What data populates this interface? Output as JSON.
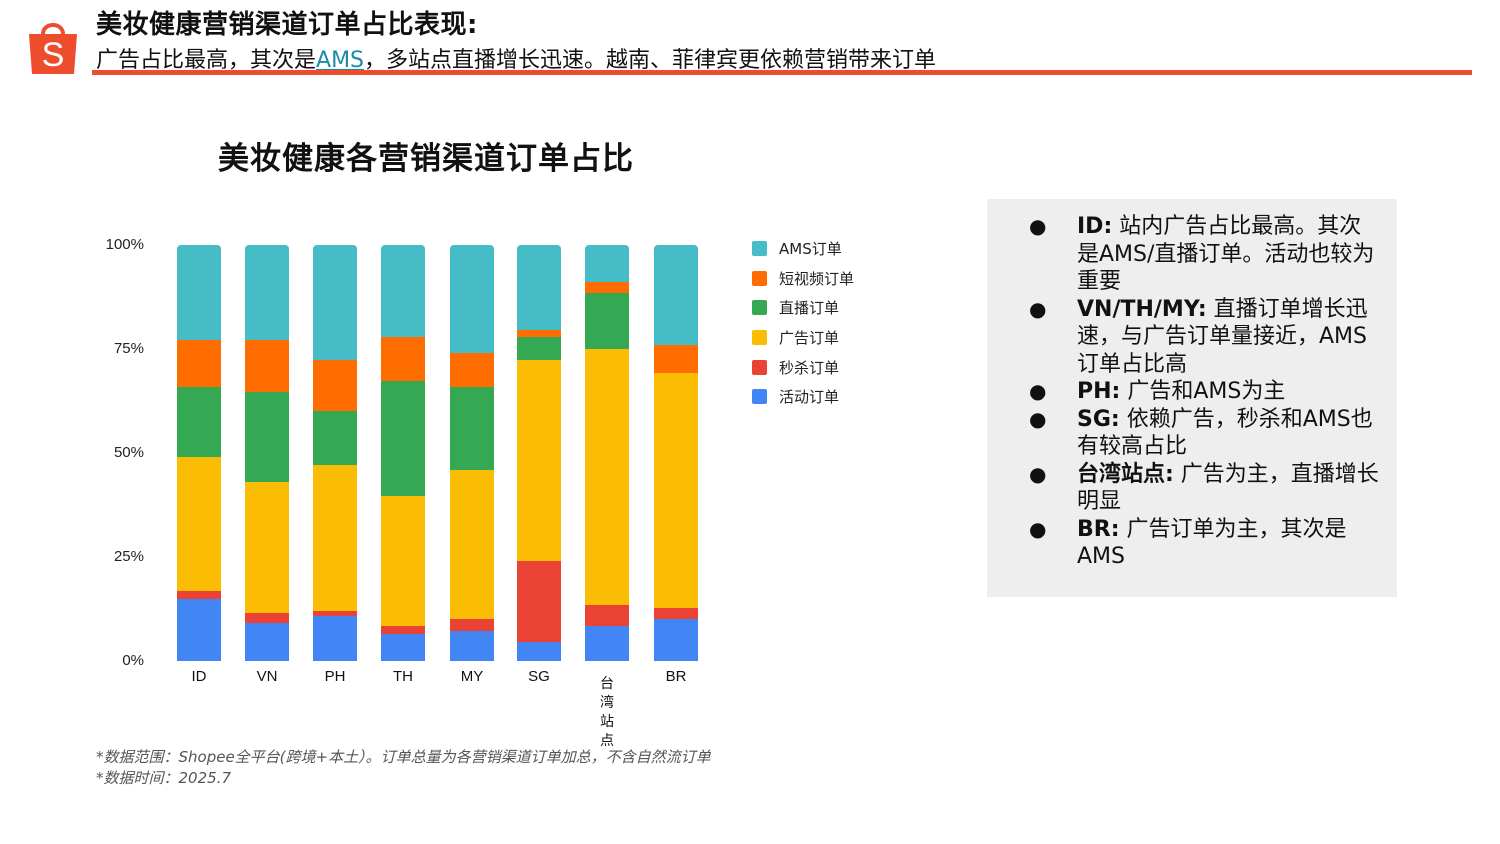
{
  "header": {
    "title": "美妆健康营销渠道订单占比表现:",
    "subtitle_pre": "广告占比最高，其次是",
    "subtitle_link": "AMS",
    "subtitle_post": "，多站点直播增长迅速。越南、菲律宾更依赖营销带来订单",
    "logo_icon": "shopee-bag-icon",
    "accent_color": "#EE4D2D"
  },
  "chart_data": {
    "type": "bar",
    "stacked": true,
    "normalized": true,
    "title": "美妆健康各营销渠道订单占比",
    "xlabel": "",
    "ylabel": "",
    "ylim": [
      0,
      100
    ],
    "yticks": [
      "0%",
      "25%",
      "50%",
      "75%",
      "100%"
    ],
    "grid": false,
    "legend_position": "right",
    "categories": [
      "ID",
      "VN",
      "PH",
      "TH",
      "MY",
      "SG",
      "台湾站点",
      "BR"
    ],
    "series": [
      {
        "name": "活动订单",
        "color": "#4285F4",
        "values": [
          14.9,
          9.1,
          10.8,
          6.5,
          7.2,
          4.6,
          8.4,
          10.1
        ]
      },
      {
        "name": "秒杀订单",
        "color": "#EA4335",
        "values": [
          1.9,
          2.4,
          1.2,
          1.9,
          2.9,
          19.4,
          5.1,
          2.6
        ]
      },
      {
        "name": "广告订单",
        "color": "#FBBC04",
        "values": [
          32.2,
          31.5,
          35.1,
          31.3,
          35.8,
          48.4,
          61.5,
          56.5
        ]
      },
      {
        "name": "直播订单",
        "color": "#34A853",
        "values": [
          16.9,
          21.6,
          13.0,
          27.6,
          20.0,
          5.5,
          13.5,
          0
        ]
      },
      {
        "name": "短视频订单",
        "color": "#FF6D01",
        "values": [
          11.3,
          12.5,
          12.3,
          10.6,
          8.1,
          1.7,
          2.6,
          6.8
        ]
      },
      {
        "name": "AMS订单",
        "color": "#46BDC6",
        "values": [
          22.8,
          22.8,
          27.6,
          22.1,
          26.0,
          20.4,
          8.9,
          24.0
        ]
      }
    ],
    "legend": [
      "AMS订单",
      "短视频订单",
      "直播订单",
      "广告订单",
      "秒杀订单",
      "活动订单"
    ]
  },
  "legend_items": [
    {
      "label": "AMS订单",
      "color": "#46BDC6"
    },
    {
      "label": "短视频订单",
      "color": "#FF6D01"
    },
    {
      "label": "直播订单",
      "color": "#34A853"
    },
    {
      "label": "广告订单",
      "color": "#FBBC04"
    },
    {
      "label": "秒杀订单",
      "color": "#EA4335"
    },
    {
      "label": "活动订单",
      "color": "#4285F4"
    }
  ],
  "notes": {
    "scope": "*数据范围：Shopee全平台(跨境+本土）。订单总量为各营销渠道订单加总，不含自然流订单",
    "time": "*数据时间：2025.7"
  },
  "insights": [
    {
      "key": "ID:",
      "text": " 站内广告占比最高。其次是AMS/直播订单。活动也较为重要"
    },
    {
      "key": "VN/TH/MY:",
      "text": " 直播订单增长迅速，与广告订单量接近，AMS订单占比高"
    },
    {
      "key": "PH:",
      "text": " 广告和AMS为主"
    },
    {
      "key": "SG:",
      "text": " 依赖广告，秒杀和AMS也有较高占比"
    },
    {
      "key": "台湾站点:",
      "text": " 广告为主，直播增长明显"
    },
    {
      "key": "BR:",
      "text": " 广告订单为主，其次是AMS"
    }
  ],
  "bullet_glyph": "●"
}
